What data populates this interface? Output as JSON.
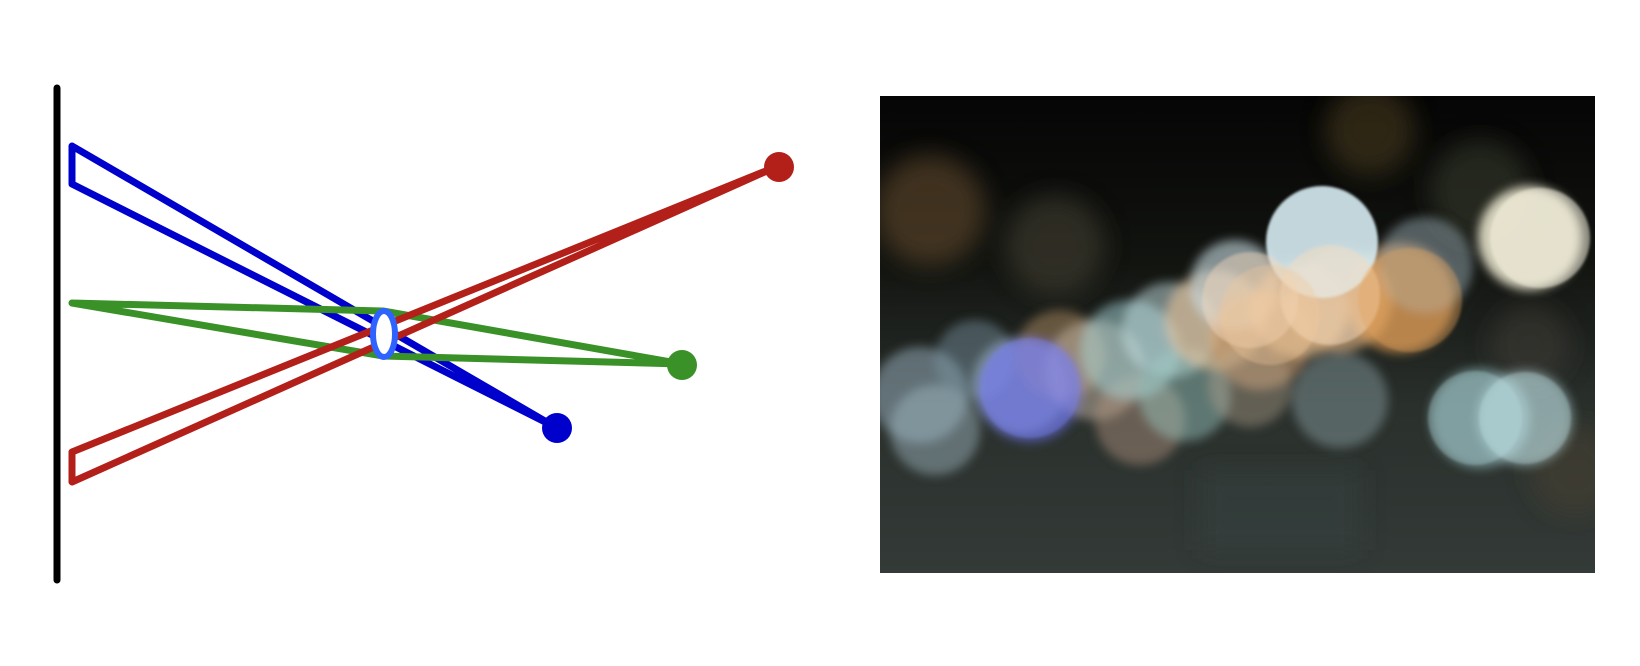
{
  "colors": {
    "sensor": "#000000",
    "lens": "#2f63ff",
    "near_ray": "#0000cc",
    "focus_ray": "#3a9128",
    "far_ray": "#b3201a",
    "photo_background": "#0a0b08"
  },
  "icons": {
    "lens": "lens-icon",
    "sensor": "sensor-line-icon"
  },
  "bokeh_colors": {
    "white_blue": "#d6ecf3",
    "peach": "#f2c89a",
    "orange": "#e6a25a",
    "cyan": "#a8d8dc",
    "blue": "#6f74f2",
    "cream": "#f5f0d8",
    "brown": "#6a5030",
    "grey_blue": "#94aab8"
  }
}
